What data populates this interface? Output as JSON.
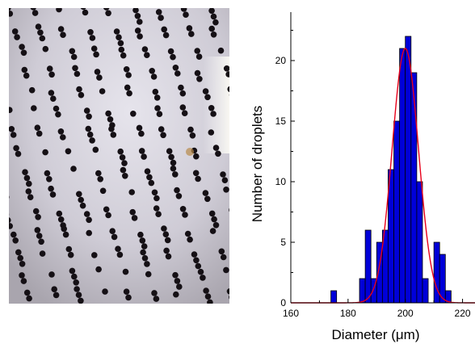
{
  "chart_data": {
    "type": "bar",
    "xlabel": "Diameter (μm)",
    "ylabel": "Number of droplets",
    "xlim": [
      160,
      230
    ],
    "ylim": [
      0,
      24
    ],
    "xticks": [
      "160",
      "180",
      "200",
      "220"
    ],
    "yticks": [
      "0",
      "5",
      "10",
      "15",
      "20"
    ],
    "bin_width": 2,
    "bins": [
      {
        "left": 174,
        "count": 1
      },
      {
        "left": 184,
        "count": 2
      },
      {
        "left": 186,
        "count": 6
      },
      {
        "left": 188,
        "count": 2
      },
      {
        "left": 190,
        "count": 5
      },
      {
        "left": 192,
        "count": 6
      },
      {
        "left": 194,
        "count": 11
      },
      {
        "left": 196,
        "count": 15
      },
      {
        "left": 198,
        "count": 21
      },
      {
        "left": 200,
        "count": 22
      },
      {
        "left": 202,
        "count": 19
      },
      {
        "left": 204,
        "count": 10
      },
      {
        "left": 206,
        "count": 2
      },
      {
        "left": 208,
        "count": 0
      },
      {
        "left": 210,
        "count": 5
      },
      {
        "left": 212,
        "count": 4
      },
      {
        "left": 214,
        "count": 1
      }
    ],
    "fit": {
      "type": "gaussian",
      "mean": 200,
      "sigma": 4.6,
      "amplitude": 21
    },
    "colors": {
      "bar": "#0000d8",
      "bar_edge": "#000000",
      "fit": "#e8001a"
    },
    "grid": false,
    "legend": "none"
  },
  "photo": {
    "colors": {
      "background": "#c9c6d0",
      "droplet": "#151015"
    }
  }
}
